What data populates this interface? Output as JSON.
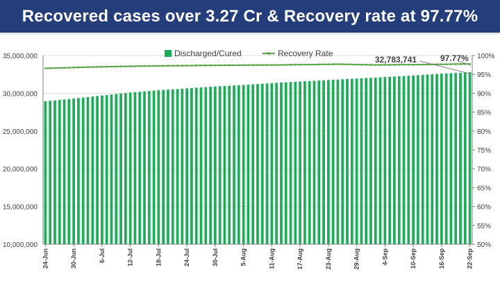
{
  "header": {
    "title": "Recovered cases over 3.27 Cr & Recovery rate at 97.77%"
  },
  "colors": {
    "header_bg": "#233e7b",
    "bars": "#1aae57",
    "line": "#5aa54a",
    "annotation": "#7f7f7f"
  },
  "chart_data": {
    "type": "bar",
    "start_date": "2021-06-24",
    "end_date": "2021-09-22",
    "x_ticks": [
      "24-Jun",
      "30-Jun",
      "6-Jul",
      "12-Jul",
      "18-Jul",
      "24-Jul",
      "30-Jul",
      "5-Aug",
      "11-Aug",
      "17-Aug",
      "23-Aug",
      "29-Aug",
      "4-Sep",
      "10-Sep",
      "16-Sep",
      "22-Sep"
    ],
    "y_left": {
      "min": 10000000,
      "max": 35000000,
      "step": 5000000,
      "ticks": [
        "10,000,000",
        "15,000,000",
        "20,000,000",
        "25,000,000",
        "30,000,000",
        "35,000,000"
      ]
    },
    "y_right": {
      "min": 50,
      "max": 100,
      "step": 5,
      "ticks": [
        "50%",
        "55%",
        "60%",
        "65%",
        "70%",
        "75%",
        "80%",
        "85%",
        "90%",
        "95%",
        "100%"
      ]
    },
    "legend": {
      "position": "top",
      "discharged": "Discharged/Cured",
      "recovery": "Recovery Rate"
    },
    "series": [
      {
        "name": "Discharged/Cured",
        "axis": "left",
        "anchors": [
          [
            0,
            28943302
          ],
          [
            6,
            29300000
          ],
          [
            12,
            29700000
          ],
          [
            18,
            30100000
          ],
          [
            24,
            30400000
          ],
          [
            30,
            30650000
          ],
          [
            36,
            30900000
          ],
          [
            42,
            31100000
          ],
          [
            48,
            31350000
          ],
          [
            54,
            31550000
          ],
          [
            60,
            31750000
          ],
          [
            66,
            31950000
          ],
          [
            72,
            32150000
          ],
          [
            78,
            32350000
          ],
          [
            84,
            32600000
          ],
          [
            90,
            32783741
          ]
        ]
      },
      {
        "name": "Recovery Rate",
        "axis": "right",
        "anchors": [
          [
            0,
            96.6
          ],
          [
            8,
            96.9
          ],
          [
            20,
            97.2
          ],
          [
            36,
            97.4
          ],
          [
            50,
            97.5
          ],
          [
            62,
            97.7
          ],
          [
            70,
            97.5
          ],
          [
            80,
            97.6
          ],
          [
            90,
            97.77
          ]
        ]
      }
    ],
    "annotations": [
      {
        "label": "32,783,741",
        "series": "Discharged/Cured"
      },
      {
        "label": "97.77%",
        "series": "Recovery Rate"
      }
    ]
  }
}
